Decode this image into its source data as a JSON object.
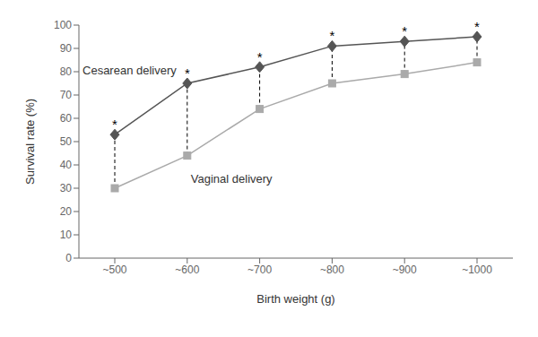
{
  "chart_data": {
    "type": "line",
    "categories": [
      "~500",
      "~600",
      "~700",
      "~800",
      "~900",
      "~1000"
    ],
    "series": [
      {
        "name": "Cesarean delivery",
        "color": "#555555",
        "marker": "diamond",
        "values": [
          53,
          75,
          82,
          91,
          93,
          95
        ]
      },
      {
        "name": "Vaginal delivery",
        "color": "#aaaaaa",
        "marker": "square",
        "values": [
          30,
          44,
          64,
          75,
          79,
          84
        ]
      }
    ],
    "xlabel": "Birth weight (g)",
    "ylabel": "Survival rate (%)",
    "ylim": [
      0,
      100
    ],
    "yticks": [
      0,
      10,
      20,
      30,
      40,
      50,
      60,
      70,
      80,
      90,
      100
    ],
    "annotations": [
      {
        "text": "*",
        "x": "~500",
        "y": 53
      },
      {
        "text": "*",
        "x": "~600",
        "y": 75
      },
      {
        "text": "*",
        "x": "~700",
        "y": 82
      },
      {
        "text": "*",
        "x": "~800",
        "y": 91
      },
      {
        "text": "*",
        "x": "~900",
        "y": 93
      },
      {
        "text": "*",
        "x": "~1000",
        "y": 95
      }
    ],
    "grid": false
  }
}
